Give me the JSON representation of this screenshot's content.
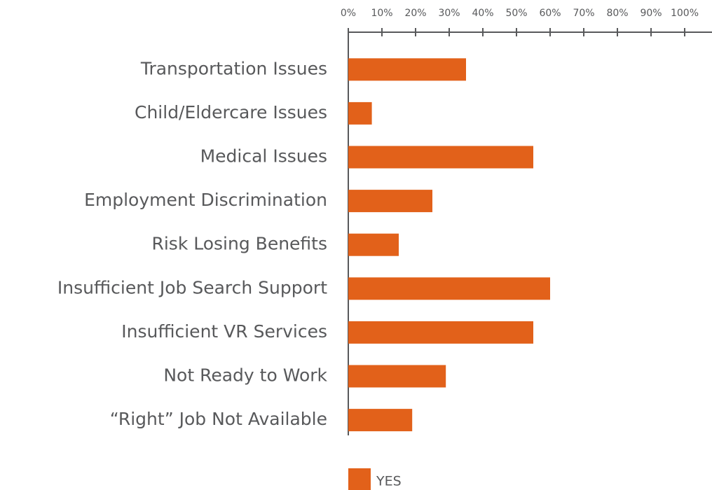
{
  "chart_data": {
    "type": "bar",
    "orientation": "horizontal",
    "categories": [
      "Transportation Issues",
      "Child/Eldercare Issues",
      "Medical Issues",
      "Employment Discrimination",
      "Risk Losing Benefits",
      "Insufficient Job Search Support",
      "Insufficient VR Services",
      "Not Ready to Work",
      "“Right” Job Not Available"
    ],
    "series": [
      {
        "name": "YES",
        "color": "#e2611a",
        "values": [
          35,
          7,
          55,
          25,
          15,
          60,
          55,
          29,
          19
        ]
      }
    ],
    "xlim": [
      0,
      100
    ],
    "xticks": [
      {
        "value": 0,
        "label": "0%"
      },
      {
        "value": 10,
        "label": "10%"
      },
      {
        "value": 20,
        "label": "20%"
      },
      {
        "value": 30,
        "label": "30%"
      },
      {
        "value": 40,
        "label": "40%"
      },
      {
        "value": 50,
        "label": "50%"
      },
      {
        "value": 60,
        "label": "60%"
      },
      {
        "value": 70,
        "label": "70%"
      },
      {
        "value": 80,
        "label": "80%"
      },
      {
        "value": 90,
        "label": "90%"
      },
      {
        "value": 100,
        "label": "100%"
      }
    ],
    "grid": false,
    "legend": "bottom"
  }
}
